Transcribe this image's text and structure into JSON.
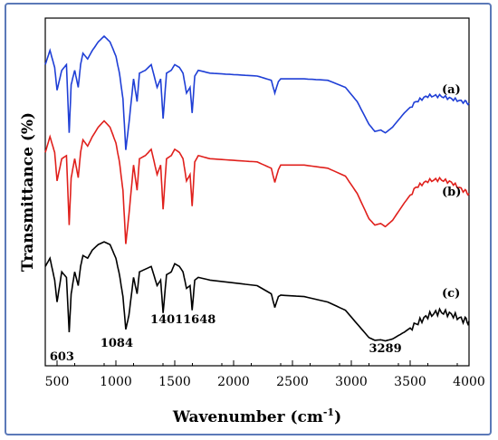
{
  "chart_data": {
    "type": "line",
    "title": "",
    "xlabel": "Wavenumber (cm",
    "xlabel_sup": "-1",
    "xlabel_end": ")",
    "ylabel": "Transmittance (%)",
    "xlim": [
      400,
      4000
    ],
    "x_ticks": [
      "500",
      "1000",
      "1500",
      "2000",
      "2500",
      "3000",
      "3500",
      "4000"
    ],
    "grid": false,
    "legend": "none",
    "series": [
      {
        "name": "(a)",
        "color": "#1f3fd6",
        "points": [
          [
            400,
            330
          ],
          [
            440,
            380
          ],
          [
            480,
            320
          ],
          [
            500,
            240
          ],
          [
            540,
            310
          ],
          [
            580,
            330
          ],
          [
            603,
            90
          ],
          [
            620,
            260
          ],
          [
            650,
            310
          ],
          [
            680,
            250
          ],
          [
            700,
            330
          ],
          [
            720,
            370
          ],
          [
            760,
            350
          ],
          [
            800,
            380
          ],
          [
            850,
            410
          ],
          [
            900,
            430
          ],
          [
            950,
            410
          ],
          [
            1000,
            360
          ],
          [
            1030,
            300
          ],
          [
            1060,
            210
          ],
          [
            1084,
            30
          ],
          [
            1110,
            120
          ],
          [
            1150,
            280
          ],
          [
            1180,
            200
          ],
          [
            1200,
            300
          ],
          [
            1250,
            310
          ],
          [
            1300,
            330
          ],
          [
            1350,
            250
          ],
          [
            1380,
            280
          ],
          [
            1401,
            140
          ],
          [
            1430,
            300
          ],
          [
            1470,
            310
          ],
          [
            1500,
            330
          ],
          [
            1540,
            320
          ],
          [
            1570,
            300
          ],
          [
            1600,
            230
          ],
          [
            1630,
            250
          ],
          [
            1648,
            160
          ],
          [
            1670,
            290
          ],
          [
            1700,
            310
          ],
          [
            1800,
            300
          ],
          [
            2000,
            295
          ],
          [
            2200,
            290
          ],
          [
            2320,
            275
          ],
          [
            2350,
            230
          ],
          [
            2380,
            270
          ],
          [
            2400,
            280
          ],
          [
            2600,
            280
          ],
          [
            2800,
            275
          ],
          [
            2950,
            250
          ],
          [
            3050,
            200
          ],
          [
            3150,
            120
          ],
          [
            3200,
            95
          ],
          [
            3250,
            100
          ],
          [
            3289,
            90
          ],
          [
            3350,
            110
          ],
          [
            3450,
            160
          ],
          [
            3550,
            200
          ],
          [
            3650,
            220
          ],
          [
            3750,
            220
          ],
          [
            3850,
            210
          ],
          [
            3950,
            200
          ],
          [
            4000,
            195
          ]
        ]
      },
      {
        "name": "(b)",
        "color": "#e0201c",
        "points": [
          [
            400,
            320
          ],
          [
            440,
            370
          ],
          [
            480,
            320
          ],
          [
            500,
            230
          ],
          [
            540,
            300
          ],
          [
            580,
            310
          ],
          [
            603,
            90
          ],
          [
            620,
            240
          ],
          [
            650,
            300
          ],
          [
            680,
            240
          ],
          [
            700,
            320
          ],
          [
            720,
            360
          ],
          [
            760,
            340
          ],
          [
            800,
            370
          ],
          [
            850,
            400
          ],
          [
            900,
            420
          ],
          [
            950,
            400
          ],
          [
            1000,
            350
          ],
          [
            1030,
            290
          ],
          [
            1060,
            200
          ],
          [
            1084,
            30
          ],
          [
            1110,
            120
          ],
          [
            1150,
            280
          ],
          [
            1180,
            200
          ],
          [
            1200,
            300
          ],
          [
            1250,
            310
          ],
          [
            1300,
            330
          ],
          [
            1350,
            250
          ],
          [
            1380,
            280
          ],
          [
            1401,
            140
          ],
          [
            1430,
            300
          ],
          [
            1470,
            310
          ],
          [
            1500,
            330
          ],
          [
            1540,
            320
          ],
          [
            1570,
            300
          ],
          [
            1600,
            230
          ],
          [
            1630,
            250
          ],
          [
            1648,
            150
          ],
          [
            1670,
            290
          ],
          [
            1700,
            310
          ],
          [
            1800,
            300
          ],
          [
            2000,
            295
          ],
          [
            2200,
            290
          ],
          [
            2320,
            270
          ],
          [
            2350,
            225
          ],
          [
            2380,
            265
          ],
          [
            2400,
            280
          ],
          [
            2600,
            280
          ],
          [
            2800,
            270
          ],
          [
            2950,
            245
          ],
          [
            3050,
            190
          ],
          [
            3150,
            110
          ],
          [
            3200,
            90
          ],
          [
            3250,
            95
          ],
          [
            3289,
            85
          ],
          [
            3350,
            105
          ],
          [
            3450,
            160
          ],
          [
            3550,
            210
          ],
          [
            3650,
            230
          ],
          [
            3750,
            235
          ],
          [
            3850,
            225
          ],
          [
            3950,
            200
          ],
          [
            4000,
            190
          ]
        ]
      },
      {
        "name": "(c)",
        "color": "#000000",
        "points": [
          [
            400,
            300
          ],
          [
            440,
            330
          ],
          [
            480,
            250
          ],
          [
            500,
            170
          ],
          [
            540,
            280
          ],
          [
            580,
            260
          ],
          [
            603,
            60
          ],
          [
            620,
            200
          ],
          [
            650,
            280
          ],
          [
            680,
            230
          ],
          [
            700,
            300
          ],
          [
            720,
            340
          ],
          [
            760,
            330
          ],
          [
            800,
            360
          ],
          [
            850,
            380
          ],
          [
            900,
            390
          ],
          [
            950,
            380
          ],
          [
            1000,
            330
          ],
          [
            1030,
            270
          ],
          [
            1060,
            190
          ],
          [
            1084,
            70
          ],
          [
            1110,
            120
          ],
          [
            1150,
            260
          ],
          [
            1180,
            200
          ],
          [
            1200,
            280
          ],
          [
            1250,
            290
          ],
          [
            1300,
            300
          ],
          [
            1350,
            230
          ],
          [
            1380,
            250
          ],
          [
            1401,
            130
          ],
          [
            1430,
            270
          ],
          [
            1470,
            280
          ],
          [
            1500,
            310
          ],
          [
            1540,
            300
          ],
          [
            1570,
            280
          ],
          [
            1600,
            220
          ],
          [
            1630,
            230
          ],
          [
            1648,
            140
          ],
          [
            1670,
            250
          ],
          [
            1700,
            260
          ],
          [
            1800,
            250
          ],
          [
            2000,
            240
          ],
          [
            2200,
            230
          ],
          [
            2320,
            200
          ],
          [
            2350,
            150
          ],
          [
            2380,
            190
          ],
          [
            2400,
            195
          ],
          [
            2600,
            190
          ],
          [
            2800,
            170
          ],
          [
            2950,
            140
          ],
          [
            3050,
            90
          ],
          [
            3150,
            40
          ],
          [
            3200,
            30
          ],
          [
            3250,
            32
          ],
          [
            3289,
            28
          ],
          [
            3350,
            35
          ],
          [
            3450,
            60
          ],
          [
            3550,
            90
          ],
          [
            3650,
            120
          ],
          [
            3750,
            135
          ],
          [
            3850,
            125
          ],
          [
            3950,
            105
          ],
          [
            4000,
            100
          ]
        ]
      }
    ],
    "annotations": [
      {
        "text": "603",
        "x": 603
      },
      {
        "text": "1084",
        "x": 1084
      },
      {
        "text": "1401",
        "x": 1401
      },
      {
        "text": "1648",
        "x": 1648
      },
      {
        "text": "3289",
        "x": 3289
      }
    ]
  }
}
